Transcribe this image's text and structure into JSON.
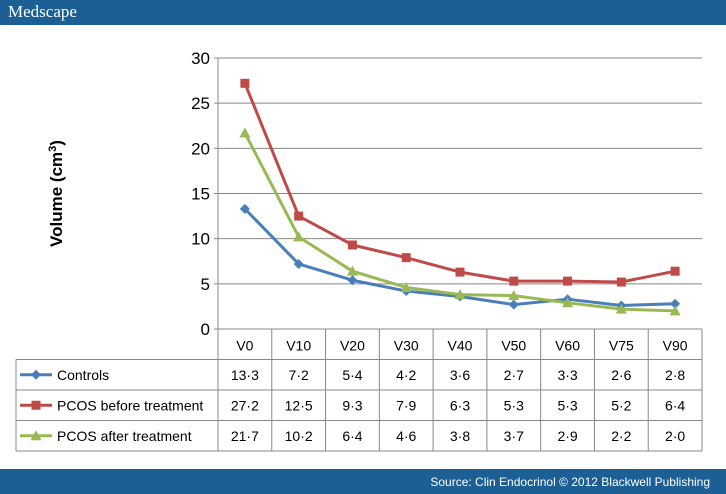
{
  "brand": {
    "logo": "Medscape"
  },
  "footer": {
    "source": "Source: Clin Endocrinol © 2012 Blackwell Publishing"
  },
  "chart_data": {
    "type": "line",
    "title": "",
    "xlabel": "",
    "ylabel": "Volume (cm³)",
    "ylabel_base": "Volume (cm",
    "ylabel_sup": "3",
    "ylabel_close": ")",
    "ylim": [
      0,
      30
    ],
    "yticks": [
      "0",
      "5",
      "10",
      "15",
      "20",
      "25",
      "30"
    ],
    "grid": true,
    "legend": "table",
    "categories": [
      "V0",
      "V10",
      "V20",
      "V30",
      "V40",
      "V50",
      "V60",
      "V75",
      "V90"
    ],
    "series": [
      {
        "name": "Controls",
        "color": "#4a7ebb",
        "marker": "diamond",
        "values": [
          13.3,
          7.2,
          5.4,
          4.2,
          3.6,
          2.7,
          3.3,
          2.6,
          2.8
        ],
        "labels": [
          "13·3",
          "7·2",
          "5·4",
          "4·2",
          "3·6",
          "2·7",
          "3·3",
          "2·6",
          "2·8"
        ]
      },
      {
        "name": "PCOS before treatment",
        "color": "#be4b48",
        "marker": "square",
        "values": [
          27.2,
          12.5,
          9.3,
          7.9,
          6.3,
          5.3,
          5.3,
          5.2,
          6.4
        ],
        "labels": [
          "27·2",
          "12·5",
          "9·3",
          "7·9",
          "6·3",
          "5·3",
          "5·3",
          "5·2",
          "6·4"
        ]
      },
      {
        "name": "PCOS after treatment",
        "color": "#98b954",
        "marker": "triangle",
        "values": [
          21.7,
          10.2,
          6.4,
          4.6,
          3.8,
          3.7,
          2.9,
          2.2,
          2.0
        ],
        "labels": [
          "21·7",
          "10·2",
          "6·4",
          "4·6",
          "3·8",
          "3·7",
          "2·9",
          "2·2",
          "2·0"
        ]
      }
    ]
  }
}
